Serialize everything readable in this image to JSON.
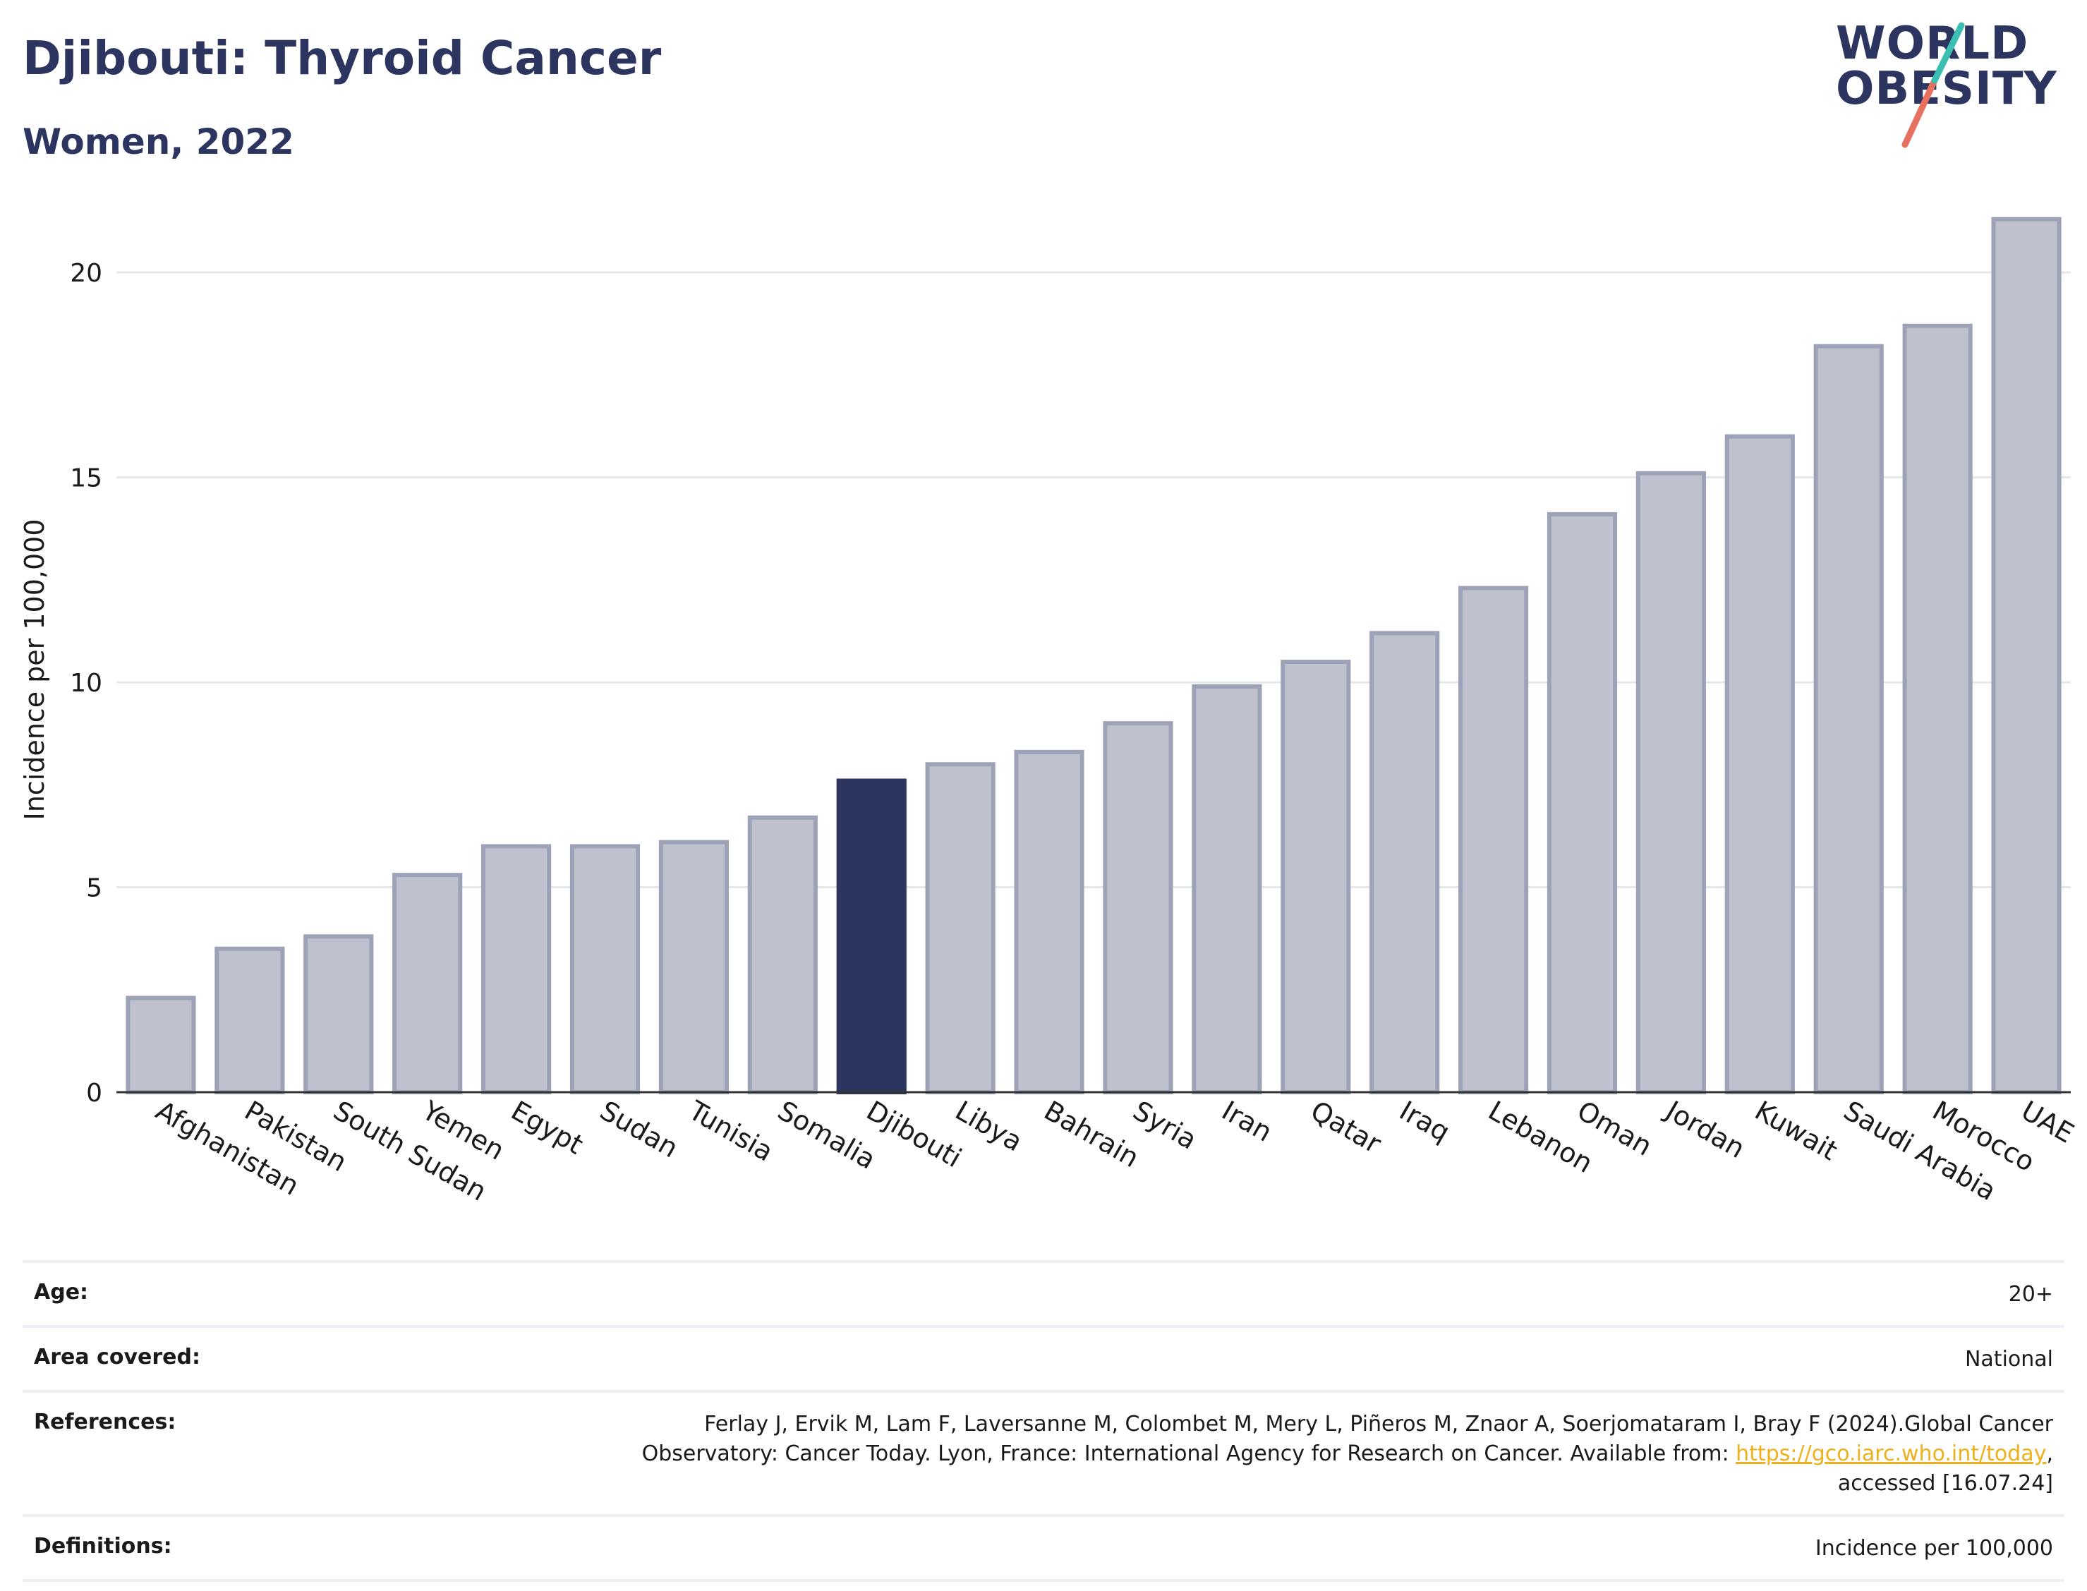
{
  "header": {
    "title": "Djibouti: Thyroid Cancer",
    "subtitle": "Women, 2022"
  },
  "logo": {
    "line1": "WORLD",
    "line2": "OBESITY"
  },
  "colors": {
    "highlight": "#2b3560",
    "bar_fill": "#bfc2ce",
    "bar_stroke": "#9ea2b6",
    "grid": "#e6e7ec",
    "link": "#f0b01c",
    "logo_slash_top": "#3bbfb3",
    "logo_slash_bottom": "#e8705e"
  },
  "chart_data": {
    "type": "bar",
    "ylabel": "Incidence per 100,000",
    "xlabel": "",
    "ylim": [
      0,
      22
    ],
    "yticks": [
      0,
      5,
      10,
      15,
      20
    ],
    "grid": true,
    "highlight": "Djibouti",
    "categories": [
      "Afghanistan",
      "Pakistan",
      "South Sudan",
      "Yemen",
      "Egypt",
      "Sudan",
      "Tunisia",
      "Somalia",
      "Djibouti",
      "Libya",
      "Bahrain",
      "Syria",
      "Iran",
      "Qatar",
      "Iraq",
      "Lebanon",
      "Oman",
      "Jordan",
      "Kuwait",
      "Saudi Arabia",
      "Morocco",
      "UAE"
    ],
    "values": [
      2.3,
      3.5,
      3.8,
      5.3,
      6.0,
      6.0,
      6.1,
      6.7,
      7.6,
      8.0,
      8.3,
      9.0,
      9.9,
      10.5,
      11.2,
      12.3,
      14.1,
      15.1,
      16.0,
      18.2,
      18.7,
      21.3
    ]
  },
  "meta": {
    "age_label": "Age:",
    "age_value": "20+",
    "area_label": "Area covered:",
    "area_value": "National",
    "references_label": "References:",
    "references_line1": "Ferlay J, Ervik M, Lam F, Laversanne M, Colombet M, Mery L, Piñeros M, Znaor A, Soerjomataram I, Bray F (2024).Global Cancer",
    "references_line2_pre": "Observatory: Cancer Today. Lyon, France: International Agency for Research on Cancer. Available from: ",
    "references_link": "https://gco.iarc.who.int/today",
    "references_line2_post": ",",
    "references_line3": "accessed [16.07.24]",
    "definitions_label": "Definitions:",
    "definitions_value": "Incidence per 100,000"
  }
}
